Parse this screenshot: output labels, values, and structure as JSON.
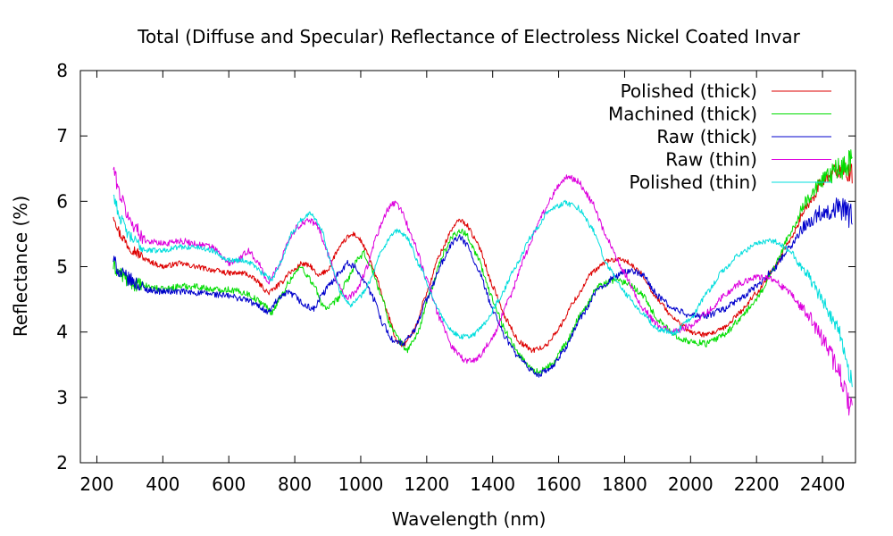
{
  "chart_data": {
    "type": "line",
    "title": "Total (Diffuse and Specular) Reflectance of Electroless Nickel Coated Invar",
    "xlabel": "Wavelength (nm)",
    "ylabel": "Reflectance (%)",
    "xlim": [
      150,
      2500
    ],
    "ylim": [
      2,
      8
    ],
    "xticks": [
      200,
      400,
      600,
      800,
      1000,
      1200,
      1400,
      1600,
      1800,
      2000,
      2200,
      2400
    ],
    "yticks": [
      2,
      3,
      4,
      5,
      6,
      7,
      8
    ],
    "legend_position": "top-right",
    "series": [
      {
        "name": "Polished (thick)",
        "color": "#dd0000",
        "noise": 0.04,
        "points": [
          [
            250,
            5.8
          ],
          [
            270,
            5.5
          ],
          [
            300,
            5.3
          ],
          [
            350,
            5.1
          ],
          [
            400,
            5.0
          ],
          [
            450,
            5.05
          ],
          [
            500,
            5.0
          ],
          [
            550,
            4.95
          ],
          [
            600,
            4.9
          ],
          [
            650,
            4.9
          ],
          [
            680,
            4.8
          ],
          [
            720,
            4.6
          ],
          [
            760,
            4.75
          ],
          [
            780,
            4.9
          ],
          [
            800,
            4.95
          ],
          [
            820,
            5.05
          ],
          [
            850,
            5.0
          ],
          [
            870,
            4.85
          ],
          [
            900,
            4.95
          ],
          [
            930,
            5.25
          ],
          [
            960,
            5.45
          ],
          [
            980,
            5.5
          ],
          [
            1000,
            5.4
          ],
          [
            1020,
            5.2
          ],
          [
            1050,
            4.8
          ],
          [
            1080,
            4.3
          ],
          [
            1110,
            3.85
          ],
          [
            1130,
            3.8
          ],
          [
            1160,
            4.0
          ],
          [
            1200,
            4.6
          ],
          [
            1240,
            5.2
          ],
          [
            1280,
            5.6
          ],
          [
            1300,
            5.72
          ],
          [
            1320,
            5.65
          ],
          [
            1360,
            5.3
          ],
          [
            1400,
            4.7
          ],
          [
            1440,
            4.2
          ],
          [
            1480,
            3.85
          ],
          [
            1520,
            3.72
          ],
          [
            1560,
            3.78
          ],
          [
            1600,
            4.05
          ],
          [
            1650,
            4.5
          ],
          [
            1700,
            4.9
          ],
          [
            1750,
            5.1
          ],
          [
            1800,
            5.1
          ],
          [
            1850,
            4.9
          ],
          [
            1900,
            4.5
          ],
          [
            1950,
            4.2
          ],
          [
            2000,
            4.0
          ],
          [
            2050,
            3.95
          ],
          [
            2100,
            4.05
          ],
          [
            2150,
            4.3
          ],
          [
            2200,
            4.6
          ],
          [
            2250,
            4.95
          ],
          [
            2300,
            5.4
          ],
          [
            2350,
            5.9
          ],
          [
            2400,
            6.3
          ],
          [
            2450,
            6.5
          ],
          [
            2490,
            6.4
          ]
        ]
      },
      {
        "name": "Machined (thick)",
        "color": "#00dd00",
        "noise": 0.05,
        "points": [
          [
            250,
            5.0
          ],
          [
            270,
            4.9
          ],
          [
            300,
            4.75
          ],
          [
            350,
            4.7
          ],
          [
            400,
            4.65
          ],
          [
            450,
            4.7
          ],
          [
            500,
            4.7
          ],
          [
            550,
            4.65
          ],
          [
            600,
            4.65
          ],
          [
            650,
            4.6
          ],
          [
            700,
            4.45
          ],
          [
            730,
            4.3
          ],
          [
            760,
            4.55
          ],
          [
            780,
            4.75
          ],
          [
            800,
            4.9
          ],
          [
            820,
            5.0
          ],
          [
            840,
            4.85
          ],
          [
            860,
            4.7
          ],
          [
            880,
            4.45
          ],
          [
            900,
            4.35
          ],
          [
            930,
            4.5
          ],
          [
            960,
            4.8
          ],
          [
            990,
            5.1
          ],
          [
            1010,
            5.2
          ],
          [
            1030,
            5.0
          ],
          [
            1060,
            4.6
          ],
          [
            1090,
            4.1
          ],
          [
            1120,
            3.85
          ],
          [
            1140,
            3.72
          ],
          [
            1170,
            3.95
          ],
          [
            1210,
            4.6
          ],
          [
            1250,
            5.2
          ],
          [
            1280,
            5.48
          ],
          [
            1300,
            5.55
          ],
          [
            1320,
            5.5
          ],
          [
            1350,
            5.2
          ],
          [
            1400,
            4.5
          ],
          [
            1440,
            4.0
          ],
          [
            1480,
            3.65
          ],
          [
            1520,
            3.43
          ],
          [
            1540,
            3.38
          ],
          [
            1580,
            3.5
          ],
          [
            1620,
            3.8
          ],
          [
            1670,
            4.3
          ],
          [
            1720,
            4.7
          ],
          [
            1770,
            4.8
          ],
          [
            1810,
            4.75
          ],
          [
            1850,
            4.6
          ],
          [
            1900,
            4.2
          ],
          [
            1950,
            3.95
          ],
          [
            2000,
            3.85
          ],
          [
            2050,
            3.82
          ],
          [
            2100,
            3.95
          ],
          [
            2150,
            4.2
          ],
          [
            2200,
            4.5
          ],
          [
            2250,
            4.95
          ],
          [
            2300,
            5.5
          ],
          [
            2350,
            6.0
          ],
          [
            2400,
            6.3
          ],
          [
            2450,
            6.5
          ],
          [
            2490,
            6.6
          ]
        ]
      },
      {
        "name": "Raw (thick)",
        "color": "#0000cc",
        "noise": 0.05,
        "points": [
          [
            250,
            5.1
          ],
          [
            270,
            4.9
          ],
          [
            300,
            4.8
          ],
          [
            350,
            4.65
          ],
          [
            400,
            4.62
          ],
          [
            450,
            4.62
          ],
          [
            500,
            4.6
          ],
          [
            550,
            4.58
          ],
          [
            600,
            4.55
          ],
          [
            650,
            4.5
          ],
          [
            690,
            4.4
          ],
          [
            720,
            4.3
          ],
          [
            750,
            4.5
          ],
          [
            780,
            4.6
          ],
          [
            800,
            4.55
          ],
          [
            830,
            4.4
          ],
          [
            860,
            4.35
          ],
          [
            880,
            4.55
          ],
          [
            910,
            4.75
          ],
          [
            940,
            4.95
          ],
          [
            960,
            5.05
          ],
          [
            980,
            5.0
          ],
          [
            1010,
            4.8
          ],
          [
            1040,
            4.5
          ],
          [
            1070,
            4.1
          ],
          [
            1100,
            3.85
          ],
          [
            1130,
            3.82
          ],
          [
            1160,
            4.0
          ],
          [
            1200,
            4.5
          ],
          [
            1250,
            5.1
          ],
          [
            1280,
            5.38
          ],
          [
            1300,
            5.45
          ],
          [
            1320,
            5.35
          ],
          [
            1360,
            4.9
          ],
          [
            1400,
            4.35
          ],
          [
            1440,
            3.9
          ],
          [
            1480,
            3.6
          ],
          [
            1520,
            3.4
          ],
          [
            1540,
            3.35
          ],
          [
            1580,
            3.45
          ],
          [
            1620,
            3.75
          ],
          [
            1670,
            4.25
          ],
          [
            1720,
            4.65
          ],
          [
            1770,
            4.85
          ],
          [
            1820,
            4.95
          ],
          [
            1860,
            4.85
          ],
          [
            1900,
            4.55
          ],
          [
            1950,
            4.35
          ],
          [
            2000,
            4.25
          ],
          [
            2050,
            4.25
          ],
          [
            2100,
            4.35
          ],
          [
            2150,
            4.5
          ],
          [
            2200,
            4.7
          ],
          [
            2250,
            4.95
          ],
          [
            2300,
            5.3
          ],
          [
            2350,
            5.65
          ],
          [
            2400,
            5.85
          ],
          [
            2450,
            5.9
          ],
          [
            2490,
            5.75
          ]
        ]
      },
      {
        "name": "Raw (thin)",
        "color": "#dd00dd",
        "noise": 0.05,
        "points": [
          [
            250,
            6.5
          ],
          [
            270,
            6.1
          ],
          [
            300,
            5.7
          ],
          [
            350,
            5.4
          ],
          [
            400,
            5.35
          ],
          [
            450,
            5.4
          ],
          [
            500,
            5.35
          ],
          [
            550,
            5.3
          ],
          [
            600,
            5.05
          ],
          [
            630,
            5.1
          ],
          [
            660,
            5.25
          ],
          [
            690,
            5.05
          ],
          [
            720,
            4.75
          ],
          [
            750,
            5.0
          ],
          [
            780,
            5.4
          ],
          [
            810,
            5.62
          ],
          [
            840,
            5.72
          ],
          [
            870,
            5.62
          ],
          [
            900,
            5.2
          ],
          [
            930,
            4.75
          ],
          [
            960,
            4.5
          ],
          [
            990,
            4.65
          ],
          [
            1020,
            5.0
          ],
          [
            1050,
            5.5
          ],
          [
            1080,
            5.85
          ],
          [
            1100,
            5.98
          ],
          [
            1120,
            5.9
          ],
          [
            1160,
            5.4
          ],
          [
            1200,
            4.8
          ],
          [
            1240,
            4.2
          ],
          [
            1280,
            3.75
          ],
          [
            1320,
            3.55
          ],
          [
            1350,
            3.58
          ],
          [
            1400,
            3.9
          ],
          [
            1450,
            4.5
          ],
          [
            1500,
            5.2
          ],
          [
            1550,
            5.8
          ],
          [
            1600,
            6.25
          ],
          [
            1630,
            6.38
          ],
          [
            1660,
            6.3
          ],
          [
            1700,
            6.0
          ],
          [
            1750,
            5.4
          ],
          [
            1800,
            4.9
          ],
          [
            1850,
            4.4
          ],
          [
            1900,
            4.1
          ],
          [
            1950,
            4.0
          ],
          [
            2000,
            4.1
          ],
          [
            2050,
            4.3
          ],
          [
            2100,
            4.55
          ],
          [
            2150,
            4.75
          ],
          [
            2200,
            4.85
          ],
          [
            2250,
            4.8
          ],
          [
            2300,
            4.6
          ],
          [
            2350,
            4.3
          ],
          [
            2400,
            3.9
          ],
          [
            2450,
            3.4
          ],
          [
            2490,
            2.75
          ]
        ]
      },
      {
        "name": "Polished (thin)",
        "color": "#00dddd",
        "noise": 0.04,
        "points": [
          [
            250,
            6.1
          ],
          [
            270,
            5.75
          ],
          [
            300,
            5.45
          ],
          [
            350,
            5.25
          ],
          [
            400,
            5.25
          ],
          [
            450,
            5.3
          ],
          [
            500,
            5.3
          ],
          [
            550,
            5.25
          ],
          [
            600,
            5.1
          ],
          [
            640,
            5.1
          ],
          [
            670,
            5.05
          ],
          [
            700,
            4.9
          ],
          [
            730,
            4.8
          ],
          [
            760,
            5.1
          ],
          [
            790,
            5.5
          ],
          [
            820,
            5.72
          ],
          [
            850,
            5.82
          ],
          [
            880,
            5.6
          ],
          [
            910,
            5.05
          ],
          [
            940,
            4.6
          ],
          [
            970,
            4.42
          ],
          [
            1000,
            4.55
          ],
          [
            1030,
            4.8
          ],
          [
            1060,
            5.2
          ],
          [
            1090,
            5.45
          ],
          [
            1110,
            5.55
          ],
          [
            1140,
            5.45
          ],
          [
            1180,
            5.0
          ],
          [
            1220,
            4.5
          ],
          [
            1260,
            4.1
          ],
          [
            1300,
            3.92
          ],
          [
            1340,
            3.95
          ],
          [
            1380,
            4.15
          ],
          [
            1420,
            4.5
          ],
          [
            1470,
            5.0
          ],
          [
            1520,
            5.5
          ],
          [
            1570,
            5.85
          ],
          [
            1620,
            5.98
          ],
          [
            1660,
            5.9
          ],
          [
            1700,
            5.6
          ],
          [
            1750,
            5.0
          ],
          [
            1800,
            4.6
          ],
          [
            1850,
            4.3
          ],
          [
            1900,
            4.05
          ],
          [
            1950,
            3.98
          ],
          [
            2000,
            4.2
          ],
          [
            2050,
            4.6
          ],
          [
            2100,
            4.95
          ],
          [
            2150,
            5.2
          ],
          [
            2200,
            5.35
          ],
          [
            2250,
            5.4
          ],
          [
            2300,
            5.25
          ],
          [
            2350,
            4.9
          ],
          [
            2400,
            4.5
          ],
          [
            2450,
            4.0
          ],
          [
            2490,
            3.2
          ]
        ]
      }
    ]
  }
}
